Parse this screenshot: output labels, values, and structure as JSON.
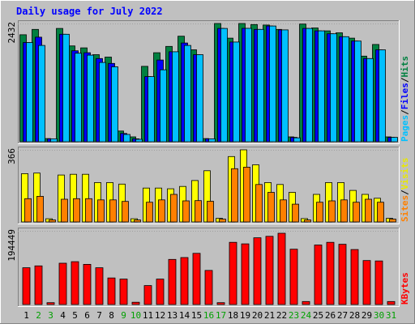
{
  "chart_data": {
    "type": "bar",
    "title": "Daily usage for July 2022",
    "categories": [
      "1",
      "2",
      "3",
      "4",
      "5",
      "6",
      "7",
      "8",
      "9",
      "10",
      "11",
      "12",
      "13",
      "14",
      "15",
      "16",
      "17",
      "18",
      "19",
      "20",
      "21",
      "22",
      "23",
      "24",
      "25",
      "26",
      "27",
      "28",
      "29",
      "30",
      "31"
    ],
    "weekend_days": [
      "2",
      "3",
      "9",
      "10",
      "16",
      "17",
      "23",
      "24",
      "30",
      "31"
    ],
    "panels": [
      {
        "name": "hits-files-pages",
        "max_label": "2432",
        "ymax": 2432,
        "legend": [
          "Pages",
          "Files",
          "Hits"
        ],
        "series": [
          {
            "name": "Hits",
            "color": "#008040",
            "values": [
              2200,
              2310,
              65,
              2330,
              1970,
              1930,
              1790,
              1740,
              220,
              100,
              1550,
              1830,
              1960,
              2170,
              1890,
              65,
              2432,
              2130,
              2432,
              2410,
              2400,
              2310,
              100,
              2420,
              2340,
              2280,
              2240,
              2130,
              1760,
              2000,
              100
            ]
          },
          {
            "name": "Files",
            "color": "#0000ff",
            "values": [
              2040,
              2150,
              60,
              2210,
              1870,
              1830,
              1710,
              1610,
              170,
              60,
              1340,
              1680,
              1850,
              2030,
              1790,
              60,
              2330,
              2050,
              2332,
              2310,
              2380,
              2300,
              90,
              2330,
              2280,
              2220,
              2160,
              2070,
              1710,
              1890,
              90
            ]
          },
          {
            "name": "Pages",
            "color": "#00c0ff",
            "values": [
              2040,
              1980,
              60,
              2210,
              1820,
              1780,
              1630,
              1540,
              150,
              50,
              1340,
              1480,
              1850,
              1980,
              1790,
              60,
              2330,
              2050,
              2332,
              2310,
              2380,
              2300,
              80,
              2330,
              2280,
              2220,
              2160,
              2070,
              1710,
              1890,
              90
            ]
          }
        ]
      },
      {
        "name": "visits-sites",
        "max_label": "366",
        "ymax": 366,
        "legend": [
          "Sites",
          "Visits"
        ],
        "series": [
          {
            "name": "Visits",
            "color": "#ffff00",
            "values": [
              245,
              248,
              16,
              238,
              242,
              242,
              200,
              200,
              192,
              16,
              172,
              172,
              168,
              180,
              210,
              260,
              18,
              332,
              366,
              290,
              200,
              190,
              150,
              17,
              140,
              200,
              200,
              160,
              140,
              120,
              18
            ]
          },
          {
            "name": "Sites",
            "color": "#ff8000",
            "values": [
              118,
              130,
              10,
              115,
              118,
              118,
              112,
              112,
              104,
              10,
              100,
              112,
              140,
              107,
              108,
              105,
              14,
              270,
              278,
              190,
              150,
              112,
              90,
              10,
              100,
              107,
              112,
              100,
              115,
              100,
              14
            ]
          }
        ]
      },
      {
        "name": "kbytes",
        "max_label": "194449",
        "ymax": 194449,
        "legend": [
          "KBytes"
        ],
        "series": [
          {
            "name": "KBytes",
            "color": "#ff0000",
            "values": [
              97000,
              102000,
              5000,
              109000,
              113000,
              106000,
              97000,
              70000,
              67000,
              6000,
              50000,
              67000,
              119000,
              124000,
              135000,
              90000,
              5000,
              164000,
              160000,
              176000,
              180000,
              188000,
              146000,
              8000,
              157000,
              164000,
              159000,
              145000,
              116000,
              115000,
              8000
            ]
          }
        ]
      }
    ],
    "colors": {
      "background": "#c0c0c0",
      "title": "#0000ff",
      "weekday_label": "#000000",
      "weekend_label": "#00a000",
      "legend_pages": "#00c0ff",
      "legend_files": "#0000ff",
      "legend_hits": "#008040",
      "legend_sites": "#ff8000",
      "legend_visits": "#e8e800",
      "legend_kbytes": "#ff0000"
    }
  }
}
